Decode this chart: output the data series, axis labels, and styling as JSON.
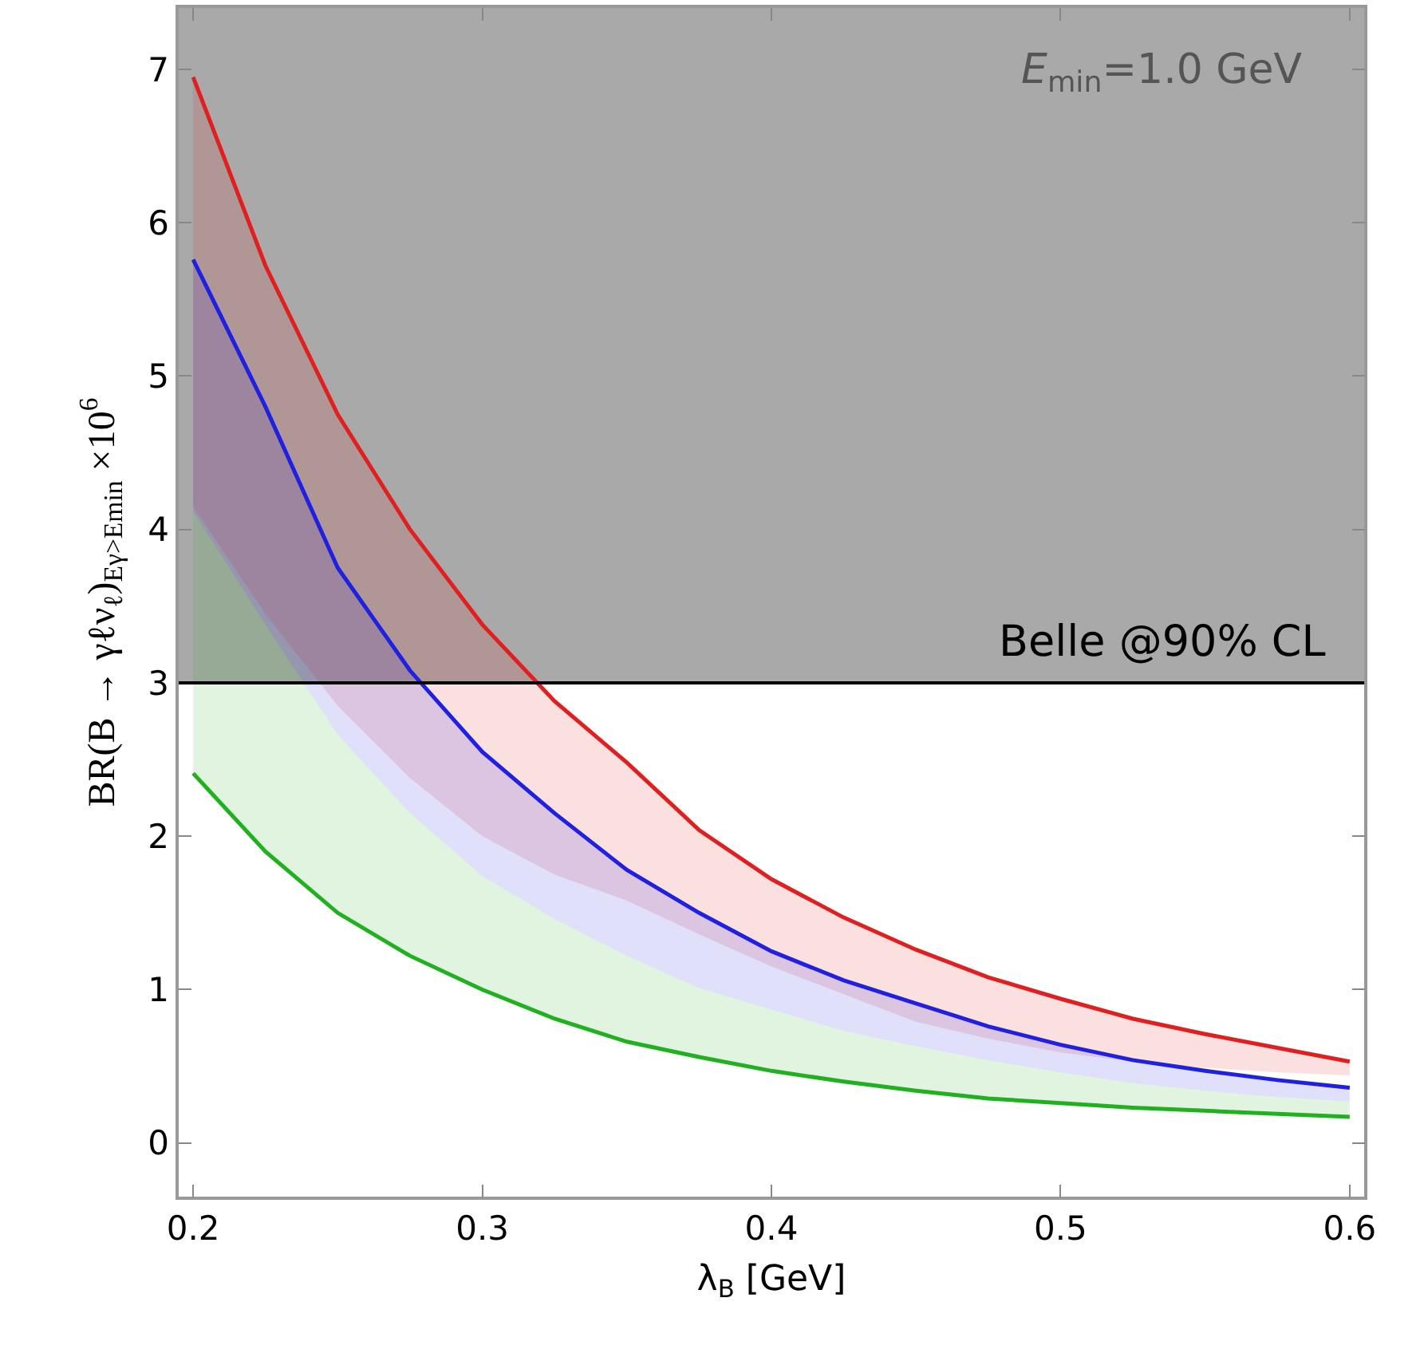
{
  "chart_data": {
    "type": "line",
    "xlabel": "λ$_{B}$ [GeV]",
    "ylabel": "BR(B → γℓν$_{ℓ}$)$_{Eγ>Emin}$ ×10$^{6}$",
    "x": [
      0.2,
      0.225,
      0.25,
      0.275,
      0.3,
      0.325,
      0.35,
      0.375,
      0.4,
      0.425,
      0.45,
      0.475,
      0.5,
      0.525,
      0.55,
      0.575,
      0.6
    ],
    "series": [
      {
        "color": "#e02020",
        "values": [
          6.95,
          5.72,
          4.75,
          4.0,
          3.38,
          2.88,
          2.48,
          2.04,
          1.72,
          1.47,
          1.26,
          1.08,
          0.94,
          0.81,
          0.71,
          0.62,
          0.53
        ],
        "lower": [
          4.15,
          3.45,
          2.85,
          2.38,
          2.0,
          1.75,
          1.58,
          1.36,
          1.15,
          0.97,
          0.79,
          0.68,
          0.59,
          0.53,
          0.49,
          0.46,
          0.44
        ],
        "upper": [
          6.95,
          5.72,
          4.75,
          4.0,
          3.38,
          2.88,
          2.48,
          2.04,
          1.72,
          1.47,
          1.26,
          1.08,
          0.94,
          0.81,
          0.71,
          0.62,
          0.53
        ]
      },
      {
        "color": "#2020e0",
        "values": [
          5.76,
          4.8,
          3.75,
          3.08,
          2.55,
          2.15,
          1.78,
          1.5,
          1.25,
          1.06,
          0.91,
          0.76,
          0.64,
          0.54,
          0.47,
          0.41,
          0.36
        ],
        "lower": [
          4.12,
          3.38,
          2.66,
          2.15,
          1.74,
          1.46,
          1.22,
          1.01,
          0.87,
          0.73,
          0.63,
          0.54,
          0.46,
          0.39,
          0.34,
          0.3,
          0.27
        ],
        "upper": [
          5.76,
          4.8,
          3.75,
          3.08,
          2.55,
          2.15,
          1.78,
          1.5,
          1.25,
          1.06,
          0.91,
          0.76,
          0.64,
          0.54,
          0.47,
          0.41,
          0.36
        ]
      },
      {
        "color": "#20b020",
        "values": [
          2.41,
          1.9,
          1.5,
          1.22,
          1.0,
          0.81,
          0.66,
          0.56,
          0.47,
          0.4,
          0.34,
          0.29,
          0.26,
          0.23,
          0.21,
          0.19,
          0.17
        ],
        "lower": [
          2.41,
          1.9,
          1.5,
          1.22,
          1.0,
          0.81,
          0.66,
          0.56,
          0.47,
          0.4,
          0.34,
          0.29,
          0.26,
          0.23,
          0.21,
          0.19,
          0.17
        ],
        "upper": [
          4.12,
          3.38,
          2.66,
          2.15,
          1.74,
          1.46,
          1.22,
          1.01,
          0.87,
          0.73,
          0.63,
          0.54,
          0.46,
          0.39,
          0.34,
          0.3,
          0.27
        ]
      }
    ],
    "bands": [
      {
        "axis": "y",
        "from": 3,
        "to": 7.4,
        "label": "Belle @90% CL",
        "color": "#a9a9a9"
      }
    ],
    "ref_lines": [
      {
        "axis": "y",
        "value": 3,
        "color": "#000000"
      }
    ],
    "annotations": [
      "E$_{min}$=1.0 GeV"
    ],
    "xlim": [
      0.195,
      0.605
    ],
    "xticks": [
      0.2,
      0.3,
      0.4,
      0.5,
      0.6
    ],
    "ylim": [
      -0.35,
      7.4
    ],
    "yticks": [
      0,
      1,
      2,
      3,
      4,
      5,
      6,
      7
    ],
    "grid": false
  }
}
